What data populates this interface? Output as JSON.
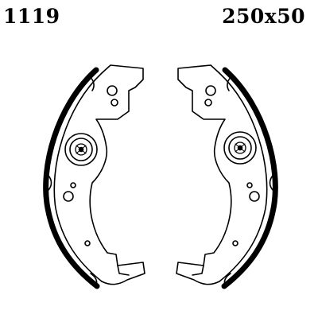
{
  "header": {
    "part_number": "1119",
    "size": "250x50"
  },
  "drawing": {
    "subject": "brake-shoe-pair",
    "line_color": "#000000",
    "background": "#ffffff"
  }
}
